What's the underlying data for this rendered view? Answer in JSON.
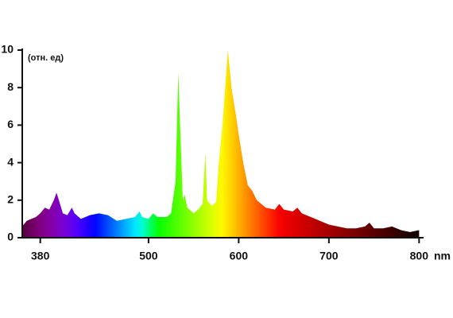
{
  "chart_data": {
    "type": "area",
    "annotation": "(отн. ед)",
    "x_label": "nm",
    "x": [
      360,
      365,
      370,
      375,
      380,
      385,
      390,
      395,
      398,
      400,
      405,
      410,
      415,
      418,
      425,
      435,
      445,
      455,
      465,
      475,
      485,
      490,
      493,
      500,
      505,
      510,
      520,
      525,
      530,
      533,
      535,
      538,
      540,
      543,
      550,
      555,
      560,
      563,
      565,
      570,
      575,
      578,
      582,
      585,
      588,
      592,
      597,
      600,
      605,
      610,
      615,
      620,
      630,
      640,
      645,
      650,
      660,
      665,
      670,
      680,
      690,
      700,
      710,
      720,
      730,
      740,
      745,
      750,
      760,
      770,
      780,
      790,
      800
    ],
    "values": [
      0.6,
      0.9,
      1.0,
      1.1,
      1.3,
      1.6,
      1.5,
      2.0,
      2.4,
      2.1,
      1.3,
      1.2,
      1.6,
      1.3,
      1.0,
      1.2,
      1.3,
      1.2,
      0.9,
      1.0,
      1.1,
      1.4,
      1.1,
      1.0,
      1.3,
      1.1,
      1.1,
      1.3,
      3.0,
      8.8,
      6.0,
      2.0,
      2.3,
      1.6,
      1.3,
      1.5,
      1.8,
      4.5,
      2.0,
      1.7,
      1.9,
      4.0,
      6.0,
      8.0,
      10.0,
      8.0,
      6.5,
      5.5,
      4.0,
      2.8,
      2.5,
      2.0,
      1.6,
      1.5,
      1.8,
      1.5,
      1.4,
      1.6,
      1.3,
      1.1,
      0.9,
      0.7,
      0.6,
      0.5,
      0.5,
      0.6,
      0.8,
      0.5,
      0.5,
      0.6,
      0.4,
      0.3,
      0.4
    ],
    "xlim": [
      360,
      805
    ],
    "ylim": [
      0,
      10
    ],
    "xticks": [
      380,
      500,
      600,
      700,
      800
    ],
    "yticks": [
      0,
      2,
      4,
      6,
      8,
      10
    ],
    "grid": false
  }
}
